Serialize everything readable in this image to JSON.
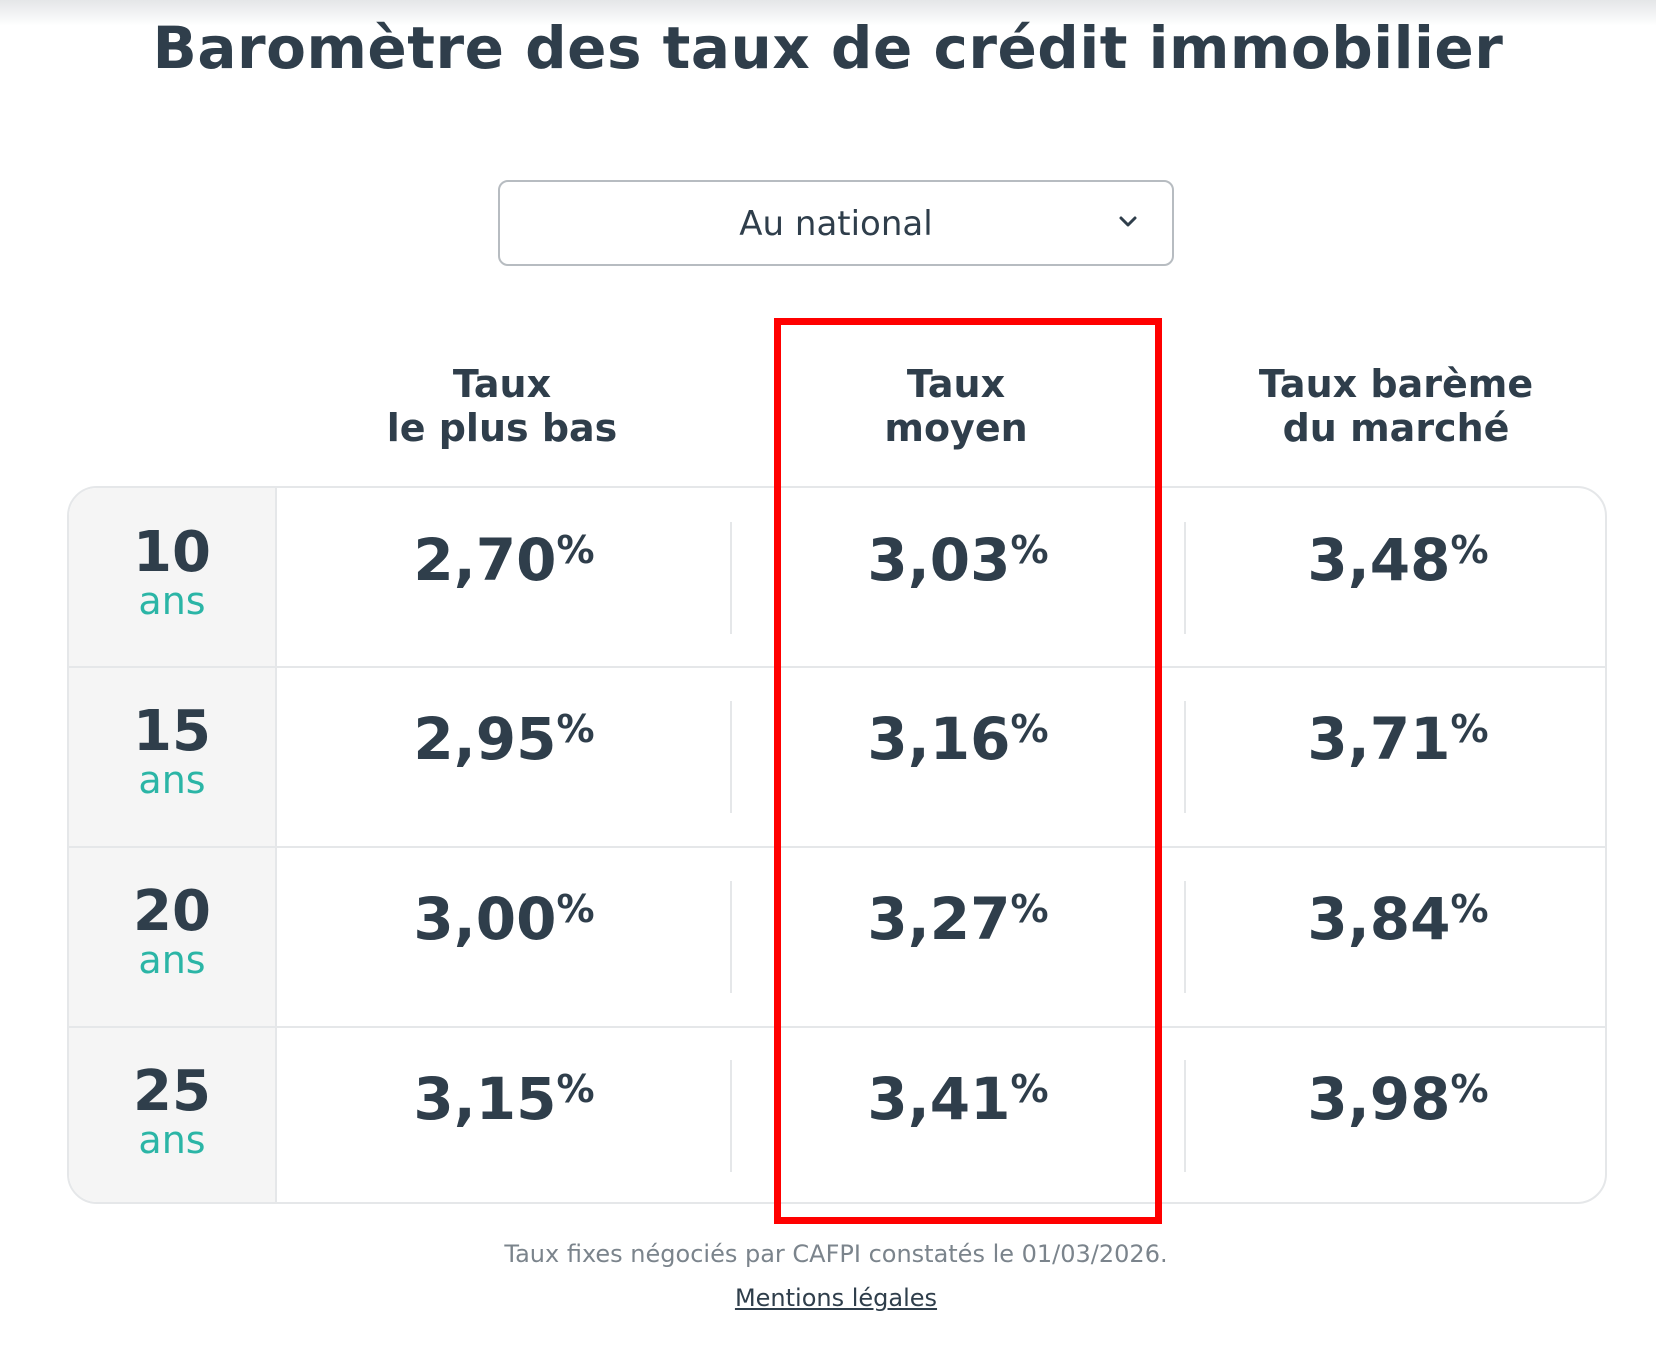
{
  "page": {
    "title": "Baromètre des taux de crédit immobilier"
  },
  "region_select": {
    "value": "Au national",
    "icon": "chevron-down-icon"
  },
  "table": {
    "columns": [
      {
        "line1": "Taux",
        "line2": "le plus bas"
      },
      {
        "line1": "Taux",
        "line2": "moyen"
      },
      {
        "line1": "Taux barème",
        "line2": "du marché"
      }
    ],
    "rows": [
      {
        "duration": "10",
        "unit": "ans",
        "rates": [
          "2,70",
          "3,03",
          "3,48"
        ]
      },
      {
        "duration": "15",
        "unit": "ans",
        "rates": [
          "2,95",
          "3,16",
          "3,71"
        ]
      },
      {
        "duration": "20",
        "unit": "ans",
        "rates": [
          "3,00",
          "3,27",
          "3,84"
        ]
      },
      {
        "duration": "25",
        "unit": "ans",
        "rates": [
          "3,15",
          "3,41",
          "3,98"
        ]
      }
    ],
    "percent_sign": "%"
  },
  "footer": {
    "note": "Taux fixes négociés par CAFPI constatés le 01/03/2026.",
    "legal_link": "Mentions légales"
  },
  "colors": {
    "text": "#2f3e4b",
    "accent": "#2bb5a6",
    "highlight": "#ff0000",
    "muted": "#7b848c"
  }
}
